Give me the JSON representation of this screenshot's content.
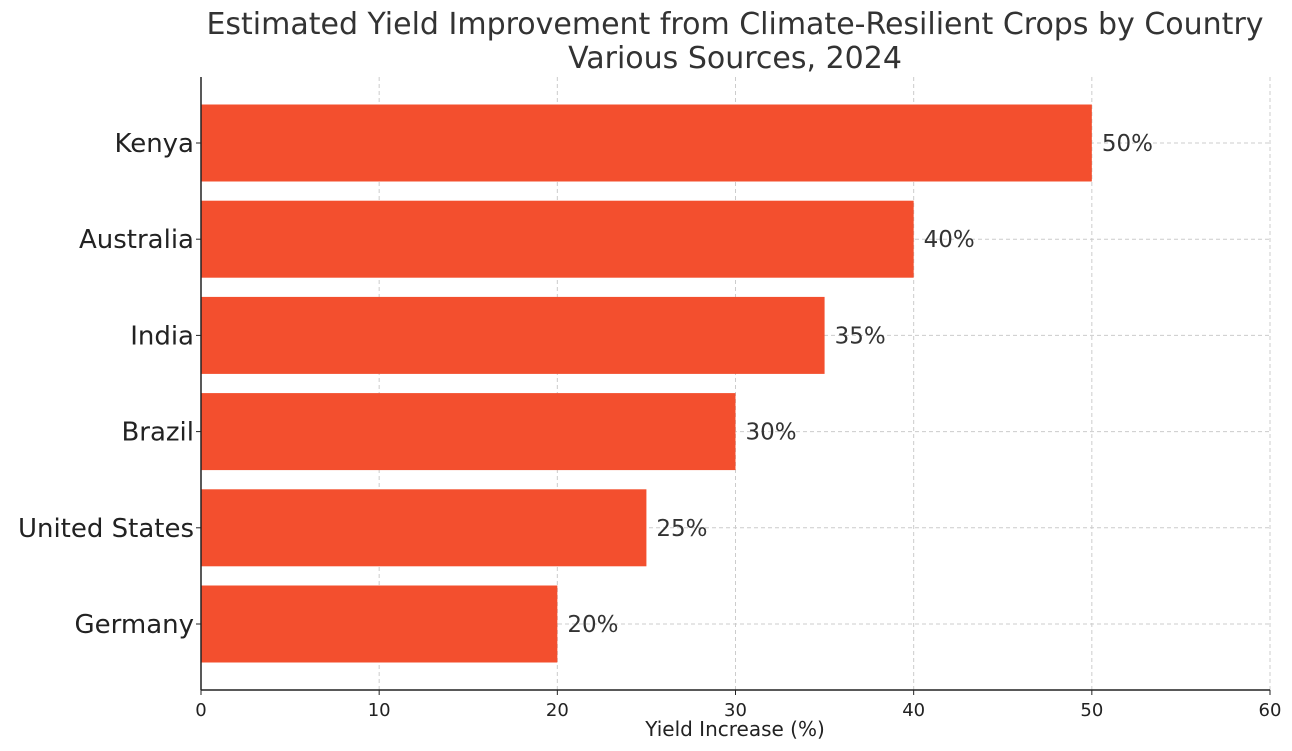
{
  "chart_data": {
    "type": "bar",
    "orientation": "horizontal",
    "title": "Estimated Yield Improvement from Climate-Resilient Crops by Country",
    "subtitle": "Various Sources, 2024",
    "xlabel": "Yield Increase (%)",
    "ylabel": "",
    "xlim": [
      0,
      60
    ],
    "x_ticks": [
      0,
      10,
      20,
      30,
      40,
      50,
      60
    ],
    "categories": [
      "Kenya",
      "Australia",
      "India",
      "Brazil",
      "United States",
      "Germany"
    ],
    "values": [
      50,
      40,
      35,
      30,
      25,
      20
    ],
    "data_labels": [
      "50%",
      "40%",
      "35%",
      "30%",
      "25%",
      "20%"
    ],
    "bar_color": "#f34f2e",
    "grid": true,
    "legend": "none"
  }
}
